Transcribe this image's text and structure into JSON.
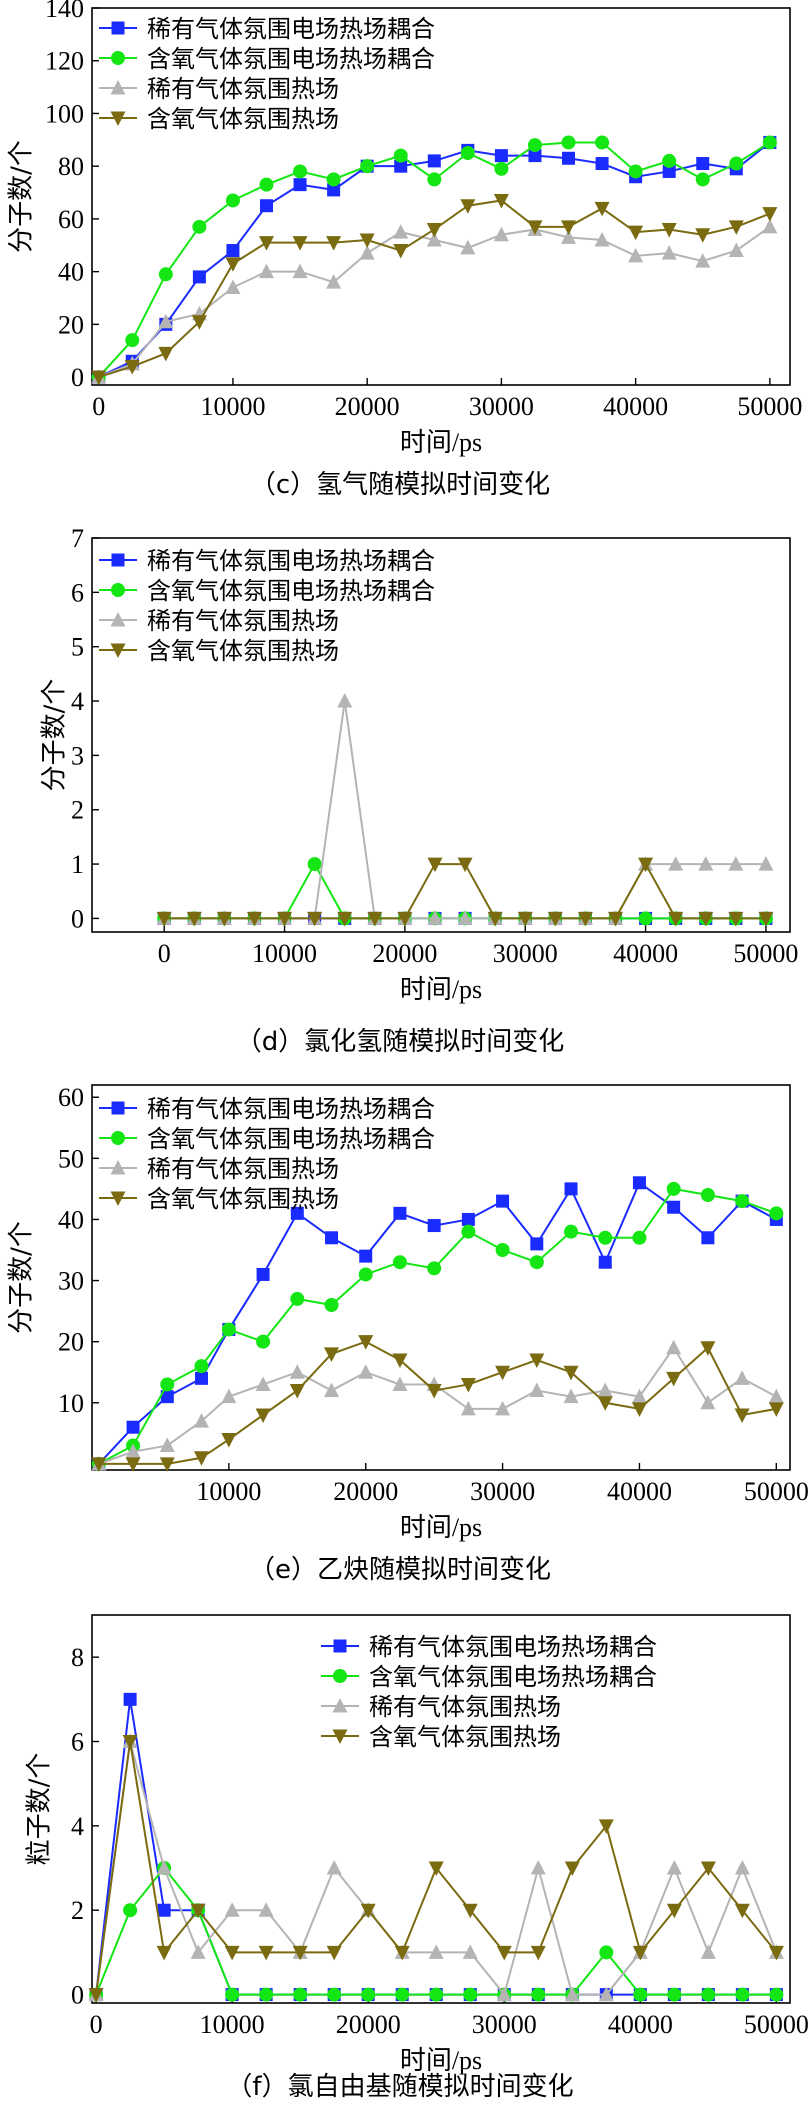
{
  "chart_data": [
    {
      "type": "line",
      "caption": "（c）氢气随模拟时间变化",
      "xlabel": "时间/ps",
      "ylabel": "分子数/个",
      "xlim": [
        -500,
        51500
      ],
      "ylim": [
        -3,
        140
      ],
      "xticks": [
        0,
        10000,
        20000,
        30000,
        40000,
        50000
      ],
      "yticks": [
        0,
        20,
        40,
        60,
        80,
        100,
        120,
        140
      ],
      "legend_position": "top-left",
      "series": [
        {
          "name": "稀有气体氛围电场热场耦合",
          "color": "#1a2bff",
          "marker": "square",
          "x": [
            0,
            2500,
            5000,
            7500,
            10000,
            12500,
            15000,
            17500,
            20000,
            22500,
            25000,
            27500,
            30000,
            32500,
            35000,
            37500,
            40000,
            42500,
            45000,
            47500,
            50000
          ],
          "y": [
            0,
            6,
            20,
            38,
            48,
            65,
            73,
            71,
            80,
            80,
            82,
            86,
            84,
            84,
            83,
            81,
            76,
            78,
            81,
            79,
            89
          ]
        },
        {
          "name": "含氧气体氛围电场热场耦合",
          "color": "#14e614",
          "marker": "circle",
          "x": [
            0,
            2500,
            5000,
            7500,
            10000,
            12500,
            15000,
            17500,
            20000,
            22500,
            25000,
            27500,
            30000,
            32500,
            35000,
            37500,
            40000,
            42500,
            45000,
            47500,
            50000
          ],
          "y": [
            0,
            14,
            39,
            57,
            67,
            73,
            78,
            75,
            80,
            84,
            75,
            85,
            79,
            88,
            89,
            89,
            78,
            82,
            75,
            81,
            89
          ]
        },
        {
          "name": "稀有气体氛围热场",
          "color": "#b4b4b4",
          "marker": "triangle-up",
          "x": [
            0,
            2500,
            5000,
            7500,
            10000,
            12500,
            15000,
            17500,
            20000,
            22500,
            25000,
            27500,
            30000,
            32500,
            35000,
            37500,
            40000,
            42500,
            45000,
            47500,
            50000
          ],
          "y": [
            0,
            5,
            21,
            24,
            34,
            40,
            40,
            36,
            47,
            55,
            52,
            49,
            54,
            56,
            53,
            52,
            46,
            47,
            44,
            48,
            57
          ]
        },
        {
          "name": "含氧气体氛围热场",
          "color": "#7a6a10",
          "marker": "triangle-down",
          "x": [
            0,
            2500,
            5000,
            7500,
            10000,
            12500,
            15000,
            17500,
            20000,
            22500,
            25000,
            27500,
            30000,
            32500,
            35000,
            37500,
            40000,
            42500,
            45000,
            47500,
            50000
          ],
          "y": [
            0,
            4,
            9,
            21,
            43,
            51,
            51,
            51,
            52,
            48,
            56,
            65,
            67,
            57,
            57,
            64,
            55,
            56,
            54,
            57,
            62
          ]
        }
      ]
    },
    {
      "type": "line",
      "caption": "（d）氯化氢随模拟时间变化",
      "xlabel": "时间/ps",
      "ylabel": "分子数/个",
      "xlim": [
        -6000,
        52000
      ],
      "ylim": [
        -0.25,
        7
      ],
      "xticks": [
        0,
        10000,
        20000,
        30000,
        40000,
        50000
      ],
      "yticks": [
        0,
        1,
        2,
        3,
        4,
        5,
        6,
        7
      ],
      "legend_position": "top-left",
      "series": [
        {
          "name": "稀有气体氛围电场热场耦合",
          "color": "#1a2bff",
          "marker": "square",
          "x": [
            0,
            2500,
            5000,
            7500,
            10000,
            12500,
            15000,
            17500,
            20000,
            22500,
            25000,
            27500,
            30000,
            32500,
            35000,
            37500,
            40000,
            42500,
            45000,
            47500,
            50000
          ],
          "y": [
            0,
            0,
            0,
            0,
            0,
            0,
            0,
            0,
            0,
            0,
            0,
            0,
            0,
            0,
            0,
            0,
            0,
            0,
            0,
            0,
            0
          ]
        },
        {
          "name": "含氧气体氛围电场热场耦合",
          "color": "#14e614",
          "marker": "circle",
          "x": [
            0,
            2500,
            5000,
            7500,
            10000,
            12500,
            15000,
            17500,
            20000,
            22500,
            25000,
            27500,
            30000,
            32500,
            35000,
            37500,
            40000,
            42500,
            45000,
            47500,
            50000
          ],
          "y": [
            0,
            0,
            0,
            0,
            0,
            1,
            0,
            0,
            0,
            0,
            0,
            0,
            0,
            0,
            0,
            0,
            0,
            0,
            0,
            0,
            0
          ]
        },
        {
          "name": "稀有气体氛围热场",
          "color": "#b4b4b4",
          "marker": "triangle-up",
          "x": [
            0,
            2500,
            5000,
            7500,
            10000,
            12500,
            15000,
            17500,
            20000,
            22500,
            25000,
            27500,
            30000,
            32500,
            35000,
            37500,
            40000,
            42500,
            45000,
            47500,
            50000
          ],
          "y": [
            0,
            0,
            0,
            0,
            0,
            0,
            4,
            0,
            0,
            0,
            0,
            0,
            0,
            0,
            0,
            0,
            1,
            1,
            1,
            1,
            1
          ]
        },
        {
          "name": "含氧气体氛围热场",
          "color": "#7a6a10",
          "marker": "triangle-down",
          "x": [
            0,
            2500,
            5000,
            7500,
            10000,
            12500,
            15000,
            17500,
            20000,
            22500,
            25000,
            27500,
            30000,
            32500,
            35000,
            37500,
            40000,
            42500,
            45000,
            47500,
            50000
          ],
          "y": [
            0,
            0,
            0,
            0,
            0,
            0,
            0,
            0,
            0,
            1,
            1,
            0,
            0,
            0,
            0,
            0,
            1,
            0,
            0,
            0,
            0
          ]
        }
      ]
    },
    {
      "type": "line",
      "caption": "（e）乙炔随模拟时间变化",
      "xlabel": "时间/ps",
      "ylabel": "分子数/个",
      "xlim": [
        0,
        51000
      ],
      "ylim": [
        -1,
        62
      ],
      "xticks": [
        10000,
        20000,
        30000,
        40000,
        50000
      ],
      "yticks": [
        10,
        20,
        30,
        40,
        50,
        60
      ],
      "legend_position": "top",
      "series": [
        {
          "name": "稀有气体氛围电场热场耦合",
          "color": "#1a2bff",
          "marker": "square",
          "x": [
            500,
            3000,
            5500,
            8000,
            10000,
            12500,
            15000,
            17500,
            20000,
            22500,
            25000,
            27500,
            30000,
            32500,
            35000,
            37500,
            40000,
            42500,
            45000,
            47500,
            50000
          ],
          "y": [
            0,
            6,
            11,
            14,
            22,
            31,
            41,
            37,
            34,
            41,
            39,
            40,
            43,
            36,
            45,
            33,
            46,
            42,
            37,
            43,
            40
          ]
        },
        {
          "name": "含氧气体氛围电场热场耦合",
          "color": "#14e614",
          "marker": "circle",
          "x": [
            500,
            3000,
            5500,
            8000,
            10000,
            12500,
            15000,
            17500,
            20000,
            22500,
            25000,
            27500,
            30000,
            32500,
            35000,
            37500,
            40000,
            42500,
            45000,
            47500,
            50000
          ],
          "y": [
            0,
            3,
            13,
            16,
            22,
            20,
            27,
            26,
            31,
            33,
            32,
            38,
            35,
            33,
            38,
            37,
            37,
            45,
            44,
            43,
            41
          ]
        },
        {
          "name": "稀有气体氛围热场",
          "color": "#b4b4b4",
          "marker": "triangle-up",
          "x": [
            500,
            3000,
            5500,
            8000,
            10000,
            12500,
            15000,
            17500,
            20000,
            22500,
            25000,
            27500,
            30000,
            32500,
            35000,
            37500,
            40000,
            42500,
            45000,
            47500,
            50000
          ],
          "y": [
            0,
            2,
            3,
            7,
            11,
            13,
            15,
            12,
            15,
            13,
            13,
            9,
            9,
            12,
            11,
            12,
            11,
            19,
            10,
            14,
            11
          ]
        },
        {
          "name": "含氧气体氛围热场",
          "color": "#7a6a10",
          "marker": "triangle-down",
          "x": [
            500,
            3000,
            5500,
            8000,
            10000,
            12500,
            15000,
            17500,
            20000,
            22500,
            25000,
            27500,
            30000,
            32500,
            35000,
            37500,
            40000,
            42500,
            45000,
            47500,
            50000
          ],
          "y": [
            0,
            0,
            0,
            1,
            4,
            8,
            12,
            18,
            20,
            17,
            12,
            13,
            15,
            17,
            15,
            10,
            9,
            14,
            19,
            8,
            9
          ]
        }
      ]
    },
    {
      "type": "line",
      "caption": "（f）氯自由基随模拟时间变化",
      "xlabel": "时间/ps",
      "ylabel": "粒子数/个",
      "xlim": [
        -300,
        51000
      ],
      "ylim": [
        -0.2,
        9
      ],
      "xticks": [
        0,
        10000,
        20000,
        30000,
        40000,
        50000
      ],
      "yticks": [
        0,
        2,
        4,
        6,
        8
      ],
      "legend_position": "top-right",
      "series": [
        {
          "name": "稀有气体氛围电场热场耦合",
          "color": "#1a2bff",
          "marker": "square",
          "x": [
            0,
            2500,
            5000,
            7500,
            10000,
            12500,
            15000,
            17500,
            20000,
            22500,
            25000,
            27500,
            30000,
            32500,
            35000,
            37500,
            40000,
            42500,
            45000,
            47500,
            50000
          ],
          "y": [
            0,
            7,
            2,
            2,
            0,
            0,
            0,
            0,
            0,
            0,
            0,
            0,
            0,
            0,
            0,
            0,
            0,
            0,
            0,
            0,
            0
          ]
        },
        {
          "name": "含氧气体氛围电场热场耦合",
          "color": "#14e614",
          "marker": "circle",
          "x": [
            0,
            2500,
            5000,
            7500,
            10000,
            12500,
            15000,
            17500,
            20000,
            22500,
            25000,
            27500,
            30000,
            32500,
            35000,
            37500,
            40000,
            42500,
            45000,
            47500,
            50000
          ],
          "y": [
            0,
            2,
            3,
            2,
            0,
            0,
            0,
            0,
            0,
            0,
            0,
            0,
            0,
            0,
            0,
            1,
            0,
            0,
            0,
            0,
            0
          ]
        },
        {
          "name": "稀有气体氛围热场",
          "color": "#b4b4b4",
          "marker": "triangle-up",
          "x": [
            0,
            2500,
            5000,
            7500,
            10000,
            12500,
            15000,
            17500,
            20000,
            22500,
            25000,
            27500,
            30000,
            32500,
            35000,
            37500,
            40000,
            42500,
            45000,
            47500,
            50000
          ],
          "y": [
            0,
            6,
            3,
            1,
            2,
            2,
            1,
            3,
            2,
            1,
            1,
            1,
            0,
            3,
            0,
            0,
            1,
            3,
            1,
            3,
            1
          ]
        },
        {
          "name": "含氧气体氛围热场",
          "color": "#7a6a10",
          "marker": "triangle-down",
          "x": [
            0,
            2500,
            5000,
            7500,
            10000,
            12500,
            15000,
            17500,
            20000,
            22500,
            25000,
            27500,
            30000,
            32500,
            35000,
            37500,
            40000,
            42500,
            45000,
            47500,
            50000
          ],
          "y": [
            0,
            6,
            1,
            2,
            1,
            1,
            1,
            1,
            2,
            1,
            3,
            2,
            1,
            1,
            3,
            4,
            1,
            2,
            3,
            2,
            1
          ]
        }
      ]
    }
  ]
}
